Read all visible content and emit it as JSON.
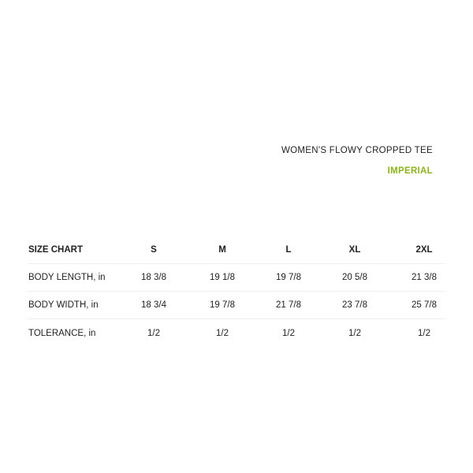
{
  "product_title": "WOMEN'S FLOWY CROPPED TEE",
  "unit_system": "IMPERIAL",
  "accent_color": "#8db31f",
  "table": {
    "header": [
      "SIZE CHART",
      "S",
      "M",
      "L",
      "XL",
      "2XL"
    ],
    "rows": [
      [
        "BODY LENGTH, in",
        "18 3/8",
        "19 1/8",
        "19 7/8",
        "20 5/8",
        "21 3/8"
      ],
      [
        "BODY WIDTH, in",
        "18 3/4",
        "19 7/8",
        "21 7/8",
        "23 7/8",
        "25 7/8"
      ],
      [
        "TOLERANCE, in",
        "1/2",
        "1/2",
        "1/2",
        "1/2",
        "1/2"
      ]
    ]
  }
}
